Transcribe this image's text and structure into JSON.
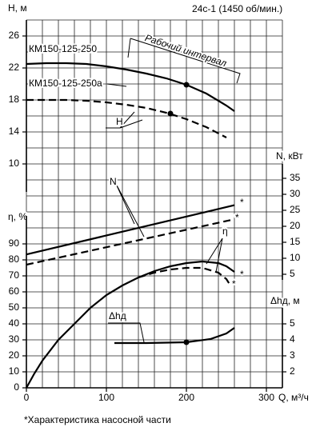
{
  "chart_data": [
    {
      "type": "line",
      "title": "24с-1 (1450 об/мин.)",
      "ylabel": "Н, м",
      "label": "Н",
      "annotation": "Рабочий интервал",
      "xlim": [
        0,
        320
      ],
      "ylim": [
        10,
        28
      ],
      "yticks": [
        10,
        14,
        18,
        22,
        26
      ],
      "series": [
        {
          "name": "КМ150-125-250",
          "color": "#000000",
          "dashed": false,
          "x": [
            0,
            25,
            50,
            75,
            100,
            125,
            150,
            175,
            200,
            225,
            250,
            260
          ],
          "values": [
            22.5,
            22.6,
            22.6,
            22.5,
            22.2,
            21.8,
            21.3,
            20.7,
            19.9,
            18.8,
            17.3,
            16.6
          ]
        },
        {
          "name": "КМ150-125-250а",
          "color": "#000000",
          "dashed": true,
          "x": [
            0,
            25,
            50,
            75,
            100,
            125,
            150,
            175,
            200,
            225,
            250
          ],
          "values": [
            18.0,
            18.0,
            18.0,
            17.9,
            17.7,
            17.4,
            17.0,
            16.4,
            15.6,
            14.6,
            13.3
          ]
        }
      ],
      "markers": {
        "x": [
          200,
          180
        ],
        "values": [
          19.9,
          16.3
        ]
      }
    },
    {
      "type": "line",
      "ylabel": "N, кВт",
      "label": "N",
      "asterisk": "*",
      "xlim": [
        0,
        320
      ],
      "ylim": [
        0,
        40
      ],
      "yticks": [
        5,
        10,
        15,
        20,
        25,
        30,
        35
      ],
      "series": [
        {
          "color": "#000000",
          "dashed": false,
          "x": [
            0,
            260
          ],
          "values": [
            11.2,
            26.6
          ]
        },
        {
          "color": "#000000",
          "dashed": true,
          "x": [
            0,
            260
          ],
          "values": [
            8.0,
            22.2
          ]
        }
      ]
    },
    {
      "type": "line",
      "ylabel": "η, %",
      "label": "η",
      "xlabel": "Q, м³/ч",
      "asterisk": "*",
      "xlim": [
        0,
        320
      ],
      "xticks": [
        0,
        100,
        200,
        300
      ],
      "ylim": [
        0,
        100
      ],
      "yticks": [
        0,
        10,
        20,
        30,
        40,
        50,
        60,
        70,
        80,
        90
      ],
      "series": [
        {
          "color": "#000000",
          "dashed": false,
          "x": [
            0,
            10,
            20,
            40,
            60,
            80,
            100,
            120,
            140,
            160,
            180,
            200,
            220,
            240,
            250,
            260
          ],
          "values": [
            0,
            9,
            17,
            30,
            40,
            50,
            58,
            64,
            69,
            73,
            76,
            78,
            79,
            78,
            76,
            72.5
          ]
        },
        {
          "color": "#000000",
          "dashed": true,
          "x": [
            140,
            160,
            180,
            200,
            220,
            240,
            250,
            255
          ],
          "values": [
            69,
            72,
            74,
            75,
            75,
            72,
            68,
            64
          ]
        }
      ]
    },
    {
      "type": "line",
      "ylabel": "Δhд, м",
      "label": "Δhд",
      "xlim": [
        0,
        320
      ],
      "ylim": [
        1,
        6
      ],
      "yticks": [
        2,
        3,
        4,
        5
      ],
      "series": [
        {
          "color": "#000000",
          "dashed": false,
          "x": [
            110,
            150,
            200,
            230,
            250,
            260
          ],
          "values": [
            3.8,
            3.8,
            3.85,
            4.05,
            4.4,
            4.75
          ]
        }
      ],
      "markers": {
        "x": [
          200
        ],
        "values": [
          3.85
        ]
      }
    }
  ],
  "footnote": "*Характеристика насосной части"
}
